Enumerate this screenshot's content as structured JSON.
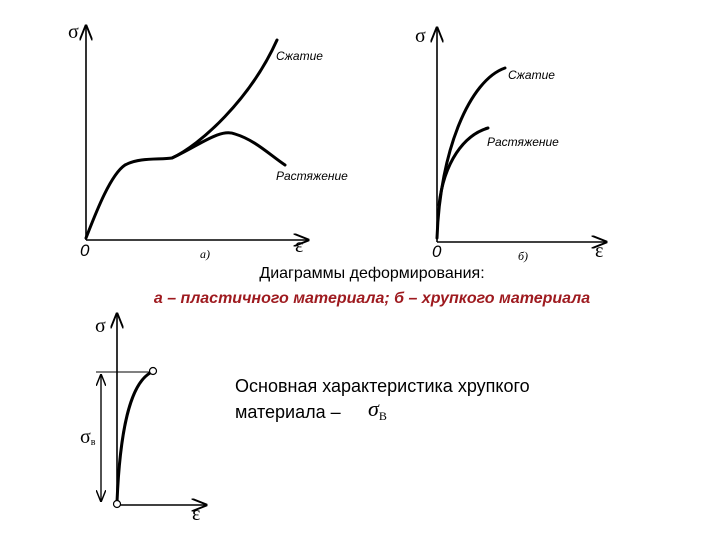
{
  "diagram_a": {
    "y_label": "σ",
    "x_label": "ε",
    "origin": "0",
    "caption": "а)",
    "curves": [
      "Сжатие",
      "Растяжение"
    ]
  },
  "diagram_b": {
    "y_label": "σ",
    "x_label": "ε",
    "origin": "0",
    "caption": "б)",
    "curves": [
      "Сжатие",
      "Растяжение"
    ]
  },
  "caption": {
    "line1": "Диаграммы деформирования:",
    "line2": "а – пластичного материала; б – хрупкого материала"
  },
  "diagram_c": {
    "y_label": "σ",
    "x_label": "ε",
    "dimension": {
      "symbol": "σ",
      "subscript": "в"
    }
  },
  "note": {
    "line1": "Основная характеристика хрупкого",
    "line2": "материала –",
    "symbol": "σ",
    "subscript": "В"
  }
}
